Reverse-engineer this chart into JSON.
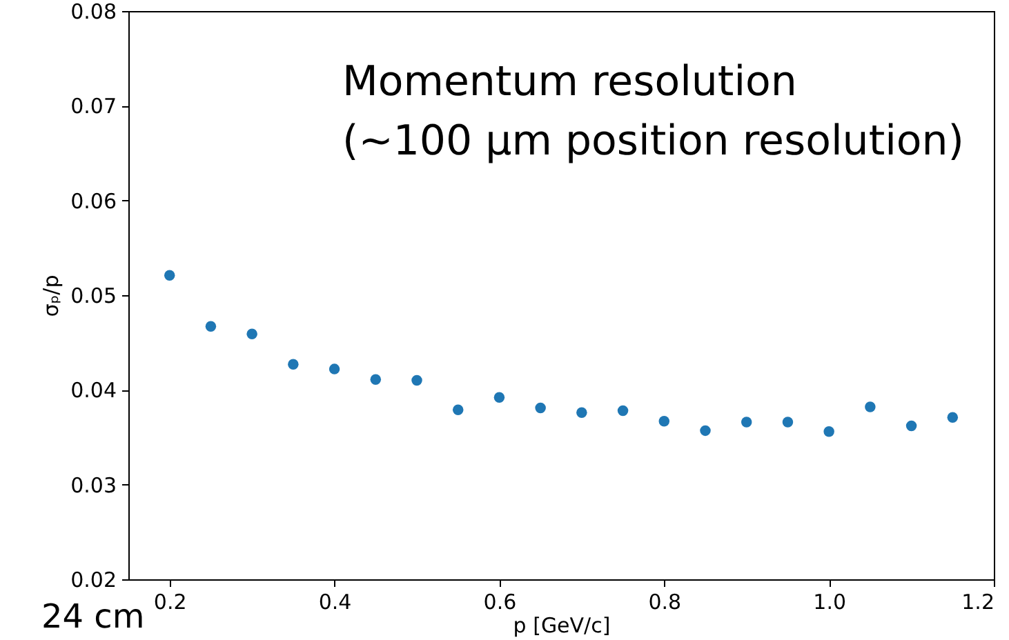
{
  "chart_data": {
    "type": "scatter",
    "xlabel": "p [GeV/c]",
    "ylabel": "σₚ/p",
    "annotations": [
      "Momentum resolution",
      "(~100 µm position resolution)",
      "24 cm"
    ],
    "x": [
      0.2,
      0.25,
      0.3,
      0.35,
      0.4,
      0.45,
      0.5,
      0.55,
      0.6,
      0.65,
      0.7,
      0.75,
      0.8,
      0.85,
      0.9,
      0.95,
      1.0,
      1.05,
      1.1,
      1.15
    ],
    "series": [
      {
        "color": "#1f77b4",
        "values": [
          0.0521,
          0.0467,
          0.0459,
          0.0427,
          0.0422,
          0.0411,
          0.041,
          0.0379,
          0.0392,
          0.0381,
          0.0376,
          0.0378,
          0.0367,
          0.0357,
          0.0366,
          0.0366,
          0.0356,
          0.0382,
          0.0362,
          0.0371
        ]
      }
    ],
    "xlim": [
      0.15,
      1.2
    ],
    "xticks": [
      0.2,
      0.4,
      0.6,
      {
        "value": 0.8,
        "label": "0.8"
      },
      {
        "value": 1.0,
        "label": "1.0"
      },
      {
        "value": 1.2,
        "label": "1.2"
      }
    ],
    "ylim": [
      0.02,
      0.08
    ],
    "yticks": [
      0.02,
      0.03,
      0.04,
      0.05,
      0.06,
      0.07,
      0.08
    ],
    "grid": false,
    "marker": "circle"
  }
}
